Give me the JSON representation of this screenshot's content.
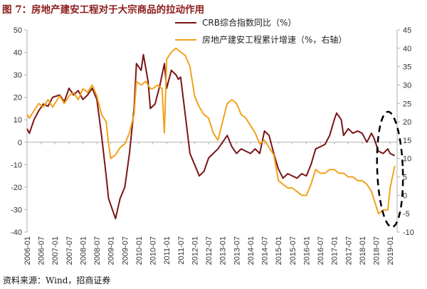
{
  "figure": {
    "title": "图 7：房地产建安工程对于大宗商品的拉动作用",
    "source": "资料来源：Wind，招商证券"
  },
  "colors": {
    "crb": "#7b1416",
    "construction": "#f2a21a",
    "axis": "#b0b0b0",
    "title": "#8b1a1a"
  },
  "chart_data": {
    "type": "line",
    "title": "",
    "xlabel": "",
    "ylabel": "",
    "ylabel_right": "",
    "legend_position": "top-right",
    "ylim": [
      -40,
      50
    ],
    "y_ticks": [
      -40,
      -30,
      -20,
      -10,
      0,
      10,
      20,
      30,
      40,
      50
    ],
    "y2lim": [
      -10,
      45
    ],
    "y2_ticks": [
      -10,
      -5,
      0,
      5,
      10,
      15,
      20,
      25,
      30,
      35,
      40,
      45
    ],
    "x_tick_labels": [
      "2006-01",
      "2006-07",
      "2007-01",
      "2007-07",
      "2008-01",
      "2008-07",
      "2009-01",
      "2009-07",
      "2010-01",
      "2010-07",
      "2011-01",
      "2011-07",
      "2012-01",
      "2012-07",
      "2013-01",
      "2013-07",
      "2014-01",
      "2014-07",
      "2015-01",
      "2015-07",
      "2016-01",
      "2016-07",
      "2017-01",
      "2017-07",
      "2018-01",
      "2018-07",
      "2019-01"
    ],
    "series": [
      {
        "name": "CRB综合指数同比（%）",
        "axis": "left",
        "points": [
          [
            "2006-01",
            6
          ],
          [
            "2006-02",
            4
          ],
          [
            "2006-04",
            10
          ],
          [
            "2006-06",
            14
          ],
          [
            "2006-08",
            17
          ],
          [
            "2006-10",
            16
          ],
          [
            "2006-12",
            20
          ],
          [
            "2007-03",
            21
          ],
          [
            "2007-05",
            18
          ],
          [
            "2007-07",
            24
          ],
          [
            "2007-09",
            21
          ],
          [
            "2007-11",
            23
          ],
          [
            "2008-01",
            19
          ],
          [
            "2008-03",
            21
          ],
          [
            "2008-05",
            24
          ],
          [
            "2008-07",
            19
          ],
          [
            "2008-09",
            3
          ],
          [
            "2008-11",
            -15
          ],
          [
            "2008-12",
            -25
          ],
          [
            "2009-01",
            -28
          ],
          [
            "2009-03",
            -34
          ],
          [
            "2009-05",
            -25
          ],
          [
            "2009-07",
            -20
          ],
          [
            "2009-09",
            -5
          ],
          [
            "2009-11",
            15
          ],
          [
            "2009-12",
            35
          ],
          [
            "2010-02",
            32
          ],
          [
            "2010-03",
            39
          ],
          [
            "2010-05",
            27
          ],
          [
            "2010-06",
            15
          ],
          [
            "2010-08",
            17
          ],
          [
            "2010-10",
            25
          ],
          [
            "2010-12",
            35
          ],
          [
            "2011-01",
            24
          ],
          [
            "2011-03",
            32
          ],
          [
            "2011-05",
            30
          ],
          [
            "2011-06",
            28
          ],
          [
            "2011-07",
            29
          ],
          [
            "2011-09",
            12
          ],
          [
            "2011-11",
            -5
          ],
          [
            "2012-01",
            -10
          ],
          [
            "2012-03",
            -15
          ],
          [
            "2012-05",
            -13
          ],
          [
            "2012-07",
            -7
          ],
          [
            "2012-09",
            -5
          ],
          [
            "2012-11",
            -3
          ],
          [
            "2013-01",
            0
          ],
          [
            "2013-03",
            3
          ],
          [
            "2013-05",
            -2
          ],
          [
            "2013-07",
            -5
          ],
          [
            "2013-09",
            -3
          ],
          [
            "2013-11",
            -4
          ],
          [
            "2014-01",
            -5
          ],
          [
            "2014-03",
            -3
          ],
          [
            "2014-05",
            -5
          ],
          [
            "2014-07",
            5
          ],
          [
            "2014-09",
            3
          ],
          [
            "2014-11",
            -5
          ],
          [
            "2015-01",
            -12
          ],
          [
            "2015-03",
            -16
          ],
          [
            "2015-05",
            -14
          ],
          [
            "2015-07",
            -15
          ],
          [
            "2015-09",
            -16
          ],
          [
            "2015-11",
            -14
          ],
          [
            "2016-01",
            -15
          ],
          [
            "2016-03",
            -10
          ],
          [
            "2016-05",
            -3
          ],
          [
            "2016-07",
            -2
          ],
          [
            "2016-09",
            -1
          ],
          [
            "2016-11",
            3
          ],
          [
            "2017-01",
            10
          ],
          [
            "2017-02",
            13
          ],
          [
            "2017-04",
            10
          ],
          [
            "2017-05",
            3
          ],
          [
            "2017-07",
            6
          ],
          [
            "2017-09",
            4
          ],
          [
            "2017-11",
            5
          ],
          [
            "2018-01",
            4
          ],
          [
            "2018-03",
            0
          ],
          [
            "2018-05",
            4
          ],
          [
            "2018-06",
            2
          ],
          [
            "2018-08",
            -4
          ],
          [
            "2018-10",
            -5
          ],
          [
            "2018-12",
            -3
          ],
          [
            "2019-01",
            -5
          ],
          [
            "2019-03",
            -6
          ]
        ]
      },
      {
        "name": "房地产建安工程累计增速（%，右轴）",
        "axis": "right",
        "points": [
          [
            "2006-01",
            22
          ],
          [
            "2006-02",
            21
          ],
          [
            "2006-04",
            23
          ],
          [
            "2006-06",
            25
          ],
          [
            "2006-08",
            24
          ],
          [
            "2006-10",
            26
          ],
          [
            "2006-12",
            24
          ],
          [
            "2007-03",
            27
          ],
          [
            "2007-05",
            25
          ],
          [
            "2007-07",
            27
          ],
          [
            "2007-09",
            28
          ],
          [
            "2007-11",
            26
          ],
          [
            "2008-01",
            29
          ],
          [
            "2008-03",
            28
          ],
          [
            "2008-05",
            30
          ],
          [
            "2008-07",
            27
          ],
          [
            "2008-09",
            22
          ],
          [
            "2008-11",
            20
          ],
          [
            "2008-12",
            14
          ],
          [
            "2009-01",
            10
          ],
          [
            "2009-03",
            11
          ],
          [
            "2009-05",
            13
          ],
          [
            "2009-07",
            14
          ],
          [
            "2009-09",
            17
          ],
          [
            "2009-11",
            22
          ],
          [
            "2009-12",
            31
          ],
          [
            "2010-02",
            30
          ],
          [
            "2010-04",
            31
          ],
          [
            "2010-06",
            29
          ],
          [
            "2010-07",
            29
          ],
          [
            "2010-09",
            30
          ],
          [
            "2010-11",
            29
          ],
          [
            "2010-12",
            17
          ],
          [
            "2011-01",
            37
          ],
          [
            "2011-03",
            39
          ],
          [
            "2011-05",
            40
          ],
          [
            "2011-07",
            39
          ],
          [
            "2011-09",
            38
          ],
          [
            "2011-11",
            35
          ],
          [
            "2012-01",
            27
          ],
          [
            "2012-03",
            24
          ],
          [
            "2012-05",
            22
          ],
          [
            "2012-07",
            21
          ],
          [
            "2012-09",
            17
          ],
          [
            "2012-11",
            15
          ],
          [
            "2013-01",
            20
          ],
          [
            "2013-03",
            25
          ],
          [
            "2013-05",
            26
          ],
          [
            "2013-07",
            25
          ],
          [
            "2013-09",
            22
          ],
          [
            "2013-11",
            21
          ],
          [
            "2014-01",
            19
          ],
          [
            "2014-03",
            17
          ],
          [
            "2014-05",
            14
          ],
          [
            "2014-07",
            15
          ],
          [
            "2014-09",
            13
          ],
          [
            "2014-11",
            11
          ],
          [
            "2015-01",
            4
          ],
          [
            "2015-03",
            3
          ],
          [
            "2015-05",
            2
          ],
          [
            "2015-07",
            2
          ],
          [
            "2015-09",
            1
          ],
          [
            "2015-11",
            0
          ],
          [
            "2016-01",
            0
          ],
          [
            "2016-03",
            3
          ],
          [
            "2016-05",
            7
          ],
          [
            "2016-07",
            6
          ],
          [
            "2016-09",
            6
          ],
          [
            "2016-11",
            7
          ],
          [
            "2017-01",
            7
          ],
          [
            "2017-03",
            6
          ],
          [
            "2017-05",
            6
          ],
          [
            "2017-07",
            5
          ],
          [
            "2017-09",
            5
          ],
          [
            "2017-11",
            4
          ],
          [
            "2018-01",
            4
          ],
          [
            "2018-03",
            3
          ],
          [
            "2018-05",
            1
          ],
          [
            "2018-06",
            -1
          ],
          [
            "2018-08",
            -5
          ],
          [
            "2018-10",
            -4
          ],
          [
            "2018-12",
            -4
          ],
          [
            "2019-01",
            2
          ],
          [
            "2019-03",
            8
          ]
        ]
      }
    ],
    "annotations": [
      {
        "type": "dashed-ellipse",
        "note": "highlights recent divergence"
      }
    ]
  }
}
